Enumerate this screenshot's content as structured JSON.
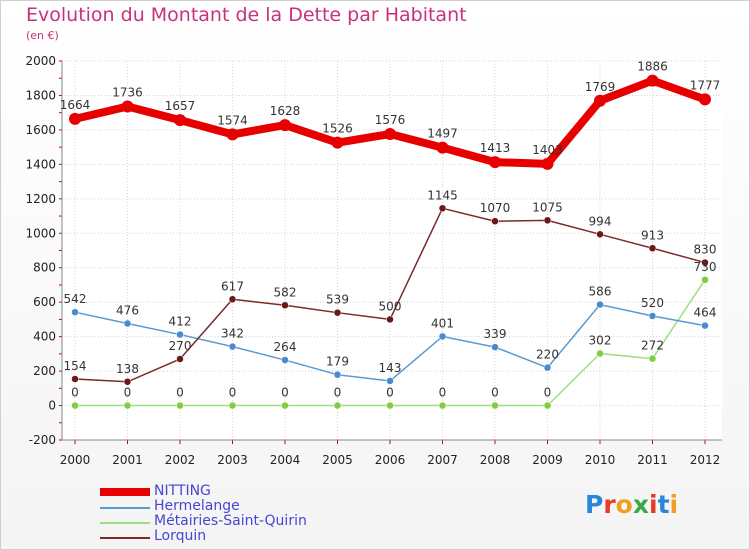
{
  "title": "Evolution du Montant de la Dette par Habitant",
  "subtitle": "(en €)",
  "logo": {
    "text": "Proxiti",
    "colors": [
      "#2a86d8",
      "#e63a2a",
      "#f0a020",
      "#3aa84a",
      "#e63a2a",
      "#2a86d8",
      "#f0a020"
    ]
  },
  "chart_data": {
    "type": "line",
    "title": "Evolution du Montant de la Dette par Habitant",
    "ylabel": "(en €)",
    "xlabel": "",
    "x": [
      "2000",
      "2001",
      "2002",
      "2003",
      "2004",
      "2005",
      "2006",
      "2007",
      "2008",
      "2009",
      "2010",
      "2011",
      "2012"
    ],
    "ylim": [
      -200,
      2000
    ],
    "yticks": [
      -200,
      0,
      200,
      400,
      600,
      800,
      1000,
      1200,
      1400,
      1600,
      1800,
      2000
    ],
    "legend_position": "bottom-left",
    "series": [
      {
        "name": "NITTING",
        "color": "#e60000",
        "values": [
          1664,
          1736,
          1657,
          1574,
          1628,
          1526,
          1576,
          1497,
          1413,
          1403,
          1769,
          1886,
          1777
        ],
        "labels": [
          "1664",
          "1736",
          "1657",
          "1574",
          "1628",
          "1526",
          "1576",
          "1497",
          "1413",
          "1403",
          "1769",
          "1886",
          "1777"
        ]
      },
      {
        "name": "Hermelange",
        "color": "#5a9ad2",
        "marker": "#4a8ad2",
        "values": [
          542,
          476,
          412,
          342,
          264,
          179,
          143,
          401,
          339,
          220,
          586,
          520,
          464
        ],
        "labels": [
          "542",
          "476",
          "412",
          "342",
          "264",
          "179",
          "143",
          "401",
          "339",
          "220",
          "586",
          "520",
          "464"
        ]
      },
      {
        "name": "Métairies-Saint-Quirin",
        "color": "#9fdd84",
        "marker": "#7fcd40",
        "values": [
          0,
          0,
          0,
          0,
          0,
          0,
          0,
          0,
          0,
          0,
          302,
          272,
          730
        ],
        "labels": [
          "0",
          "0",
          "0",
          "0",
          "0",
          "0",
          "0",
          "0",
          "0",
          "0",
          "302",
          "272",
          "730"
        ]
      },
      {
        "name": "Lorquin",
        "color": "#7a2a2a",
        "marker": "#6a1818",
        "values": [
          154,
          138,
          270,
          617,
          582,
          539,
          500,
          1145,
          1070,
          1075,
          994,
          913,
          830
        ],
        "labels": [
          "154",
          "138",
          "270",
          "617",
          "582",
          "539",
          "500",
          "1145",
          "1070",
          "1075",
          "994",
          "913",
          "830"
        ]
      }
    ]
  }
}
